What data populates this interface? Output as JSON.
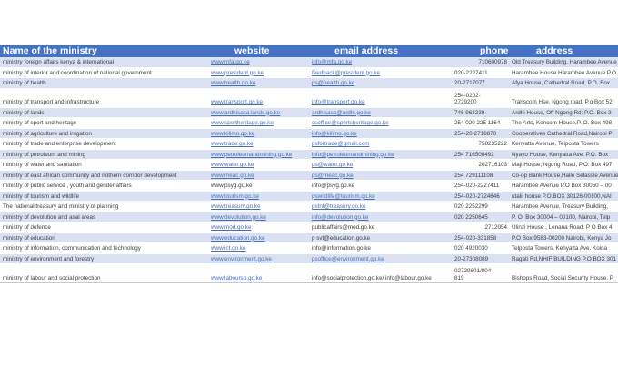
{
  "header": {
    "name": "Name of the ministry",
    "website": "website",
    "email": "email address",
    "phone": "phone",
    "address": "address"
  },
  "rows": [
    {
      "name": "ministry foreign affairs kenya & international",
      "website": "www.mfa.go.ke",
      "email": "info@mfa.go.ke",
      "phone": "710600978",
      "address": "Old Treasury Building,  Harambee Avenue"
    },
    {
      "name": "ministry of interior and coordination of national government",
      "website": "www.president.go.ke",
      "email": "feedback@president.go.ke",
      "phone": "020-2227411",
      "address": "Harambee House Harambee Avenue P.O."
    },
    {
      "name": "ministry of health",
      "website": "www.health.go.ke",
      "email": "ps@health.go.ke",
      "phone": "20-2717077",
      "address": "Afya House, Cathedral Road, P.O. Box"
    },
    {
      "name": "ministry of transport and infrastructure",
      "website": "www.transport.go.ke",
      "email": "info@transport.go.ke",
      "phone": "254-0202-\n2729200",
      "address": "Transcom Hse, Ngong road. P.o Box 52"
    },
    {
      "name": "ministry of lands",
      "website": "www.ardhisasa.lands.go.ke",
      "email": "ardhisasa@ardhi.go.ke",
      "phone": "746 962239",
      "address": "Ardhi House, Off Ngong Rd: P.O. Box 3"
    },
    {
      "name": "ministry of sport and heritage",
      "website": "www.sportheritage.go.ke",
      "email": "csoffice@sportsheritage.go.ke",
      "phone": "254 020 225 1164",
      "address": "The Arts, Kencom House,P. O. Box 498"
    },
    {
      "name": "ministry of agriculture and irrigation",
      "website": "www.kilimo.go.ke",
      "email": "info@kilimo.go.ke",
      "phone": "254-20-2718870",
      "address": "Cooperatives Cathedral Road,Nairobi P"
    },
    {
      "name": "ministry of trade and enterprise development",
      "website": "www.trade.go.ke",
      "email": "psfortrade@gmail.com",
      "phone": "758235222",
      "address": "Kenyatta Avenue, Telposta Towers"
    },
    {
      "name": "ministry of petroleum and mining",
      "website": "www.petroleumandmining.go.ke",
      "email": "info@petroleumandmining.go.ke",
      "phone": "254 716508492",
      "address": "Nyayo House, Kenyatta Ave. P.O. Box"
    },
    {
      "name": "ministry of water and sanitation",
      "website": "www.water.go.ke",
      "email": "ps@water.go.ke",
      "phone": "202716103",
      "address": "Maji House, Ngong Road, P.O. Box 497"
    },
    {
      "name": "ministry of east african community and nothern corridor development",
      "website": "www.meac.go.ke",
      "email": "ps@meac.go.ke",
      "phone": "254 729111108",
      "address": "Co-op Bank House,Haile Selassie Avenue"
    },
    {
      "name": "ministry of public service , youth and gender affairs",
      "website": " www.psyg.go.ke",
      "email": "info@psyg.go.ke",
      "phone": "254-020-2227411",
      "address": "Harambee Avenue P.O Box 30050 – 00"
    },
    {
      "name": "ministry of tourism and wildlife",
      "website": "www.tourism.go.ke",
      "email": "pswildlife@tourism.go.ke",
      "phone": "254-020-2724646",
      "address": "utalii house P.O.BOX 30126-00100,NAI"
    },
    {
      "name": "The  national treasury and ministry of planning",
      "website": "www.treasury.go.ke",
      "email": "pstnt@treasury.go.ke",
      "phone": "020 2252299",
      "address": "Harambee Avenue, Treasury Building,"
    },
    {
      "name": "ministry of devolution and asal areas",
      "website": "www.devolution.go.ke",
      "email": "info@devolution.go.ke",
      "phone": "020 2250645",
      "address": "P. O. Box 30004 – 00100, Nairobi, Telp"
    },
    {
      "name": "ministry of defence",
      "website": "www.mod.go.ke",
      "email": " publicaffairs@mod.go.ke",
      "phone": "2712054",
      "address": "Ulinzi House , Lenana Road. P O Box 4"
    },
    {
      "name": "ministry of education",
      "website": "www.education.go.ke",
      "email": " p svt@education.go.ke",
      "phone": "254-020-331858",
      "address": "P.O Box 9583-00200 Nairobi, Kenya Jo"
    },
    {
      "name": "ministry of information, communication and technology",
      "website": "www.ict.go.ke",
      "email": " info@information.go.ke",
      "phone": "020 4920030",
      "address": "Telposta Towers, Kenyatta Ave. Koina"
    },
    {
      "name": "ministry of environment and forestry",
      "website": "www.environment.go.ke",
      "email": "psoffice@environment.go.ke",
      "phone": "20-27308089",
      "address": "Ragati Rd,NHIF BUILDING P.O BOX 301"
    },
    {
      "name": "ministry of labour and social protection",
      "website": "www.laboursp.go.ke",
      "email": "info@socialprotection.go.ke/ info@labour.go.ke",
      "phone": "02729801/804-\n819",
      "address": "Bishops Road, Social Security House. P"
    }
  ],
  "colors": {
    "header_bg": "#4472c4",
    "band": "#d9e1f2",
    "link": "#4a6fb5"
  }
}
